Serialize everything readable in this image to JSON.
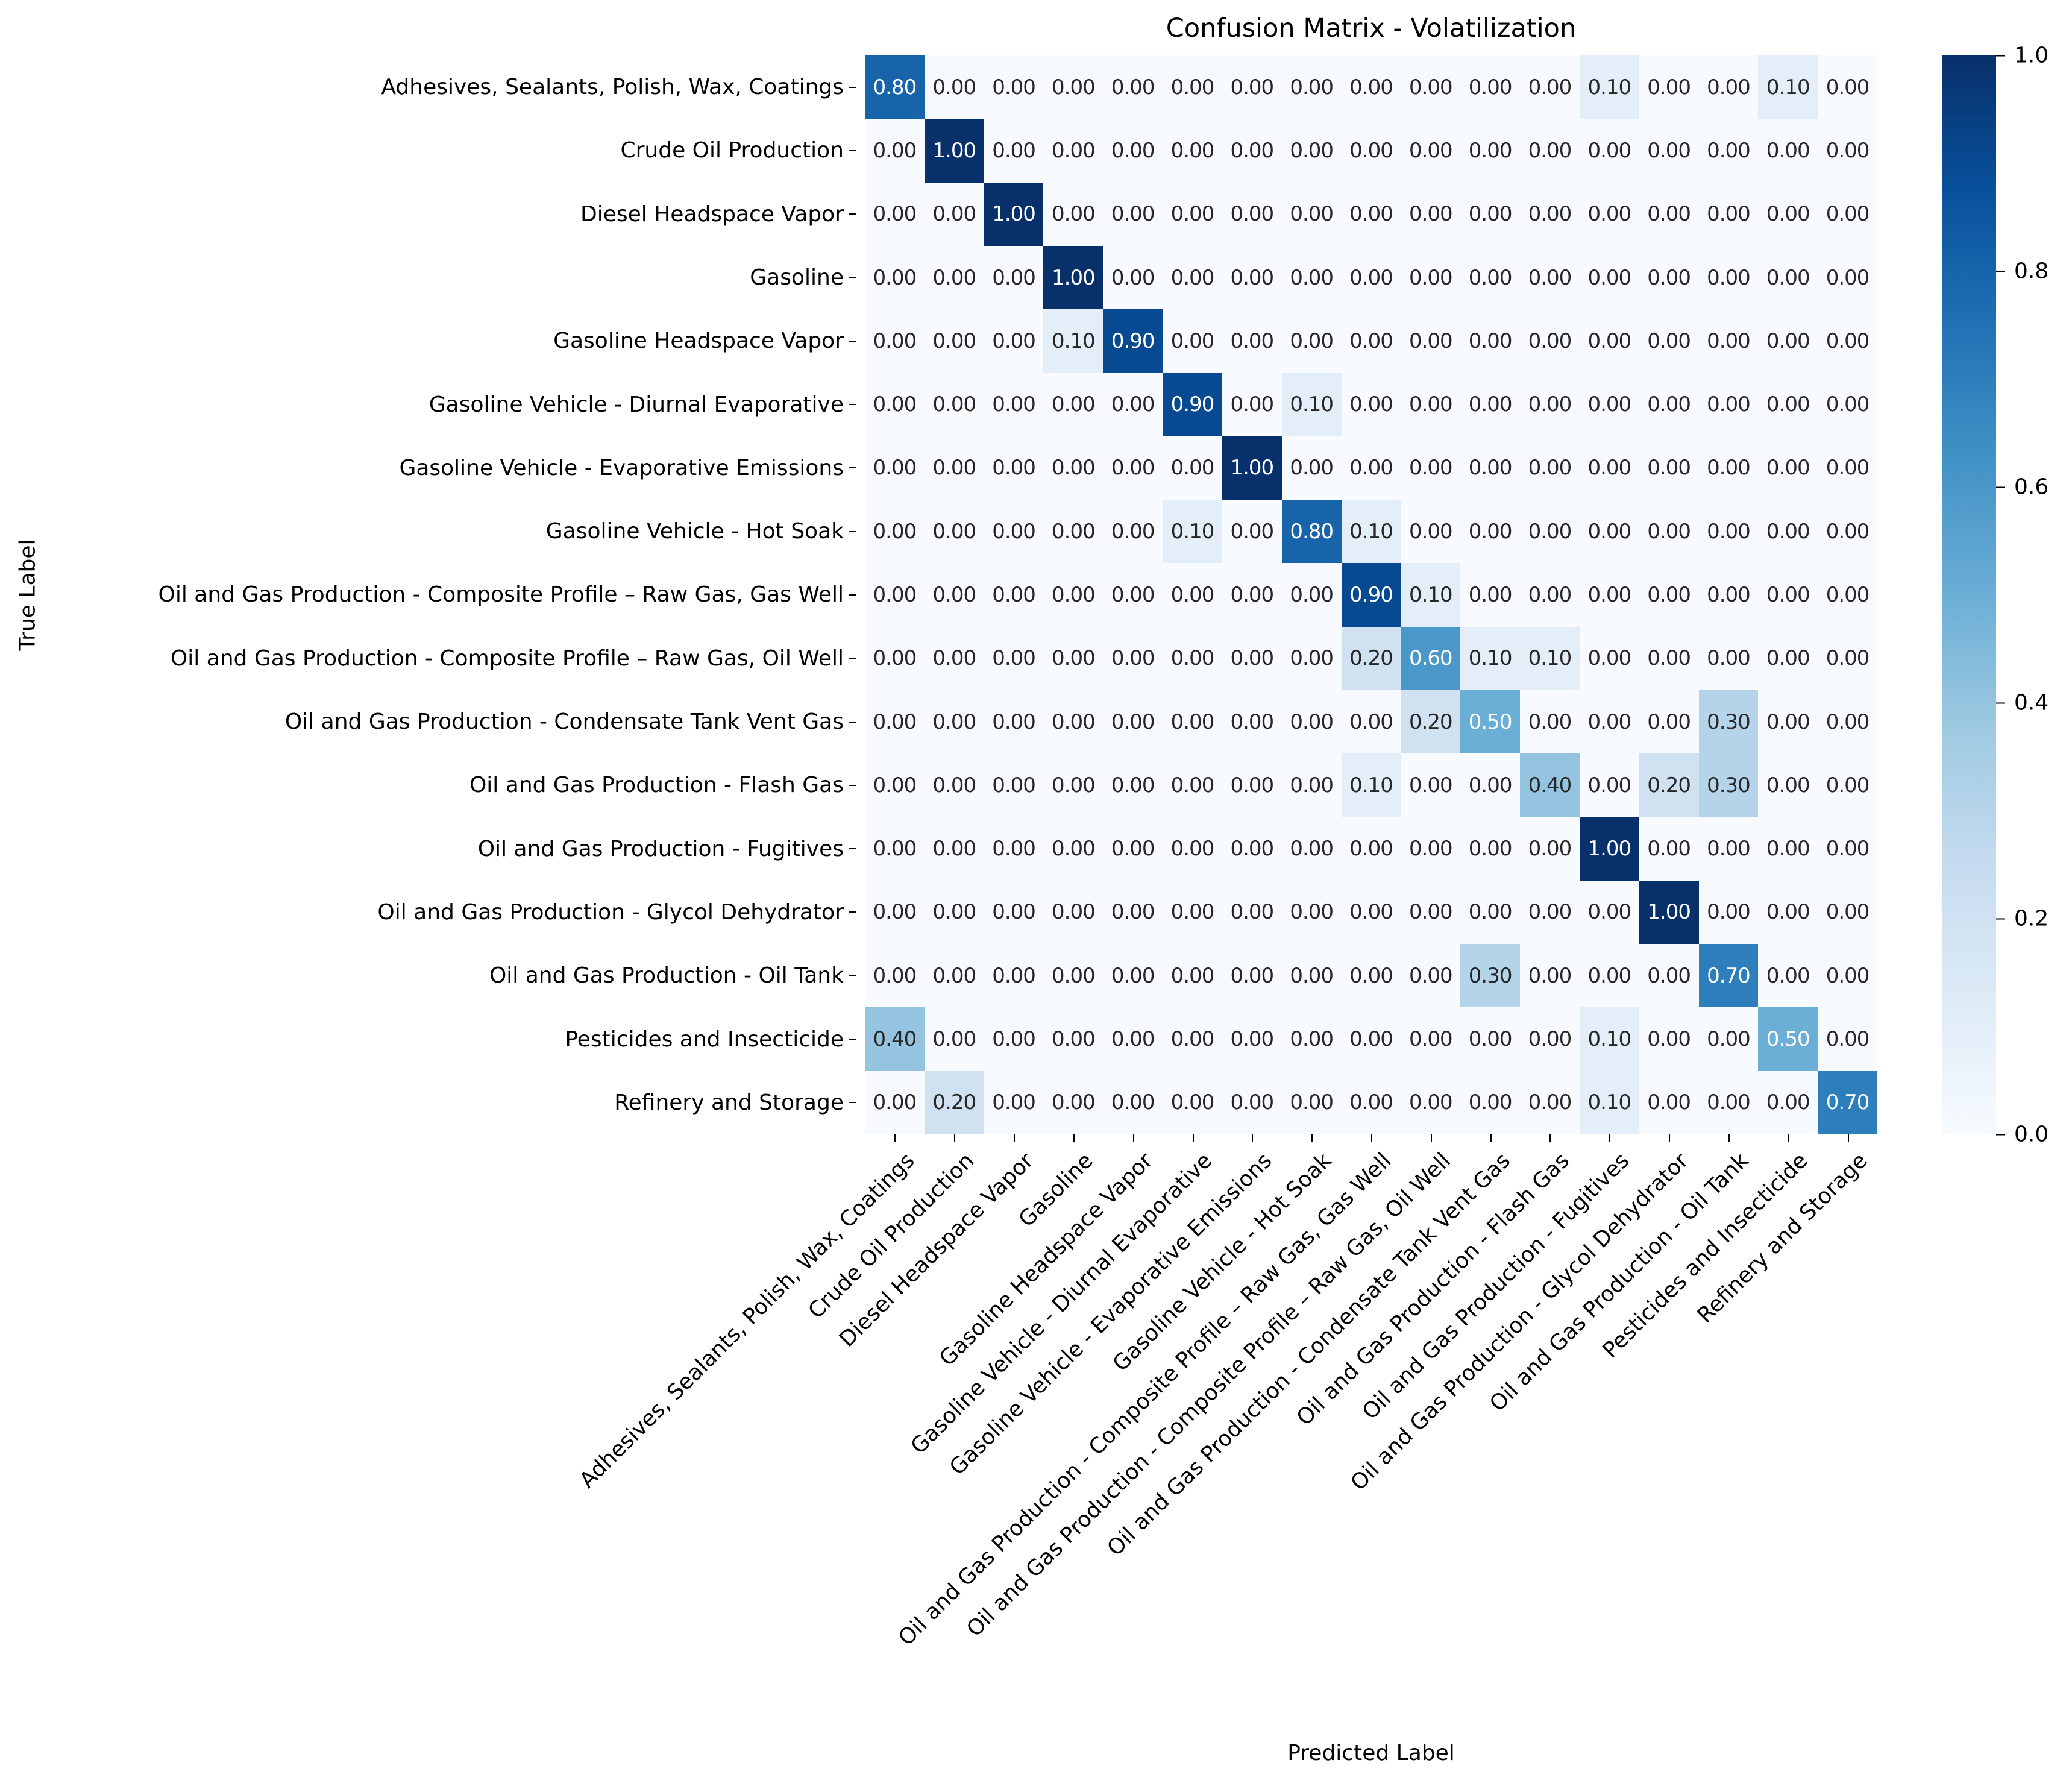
{
  "chart_data": {
    "type": "heatmap",
    "title": "Confusion Matrix - Volatilization",
    "xlabel": "Predicted Label",
    "ylabel": "True Label",
    "colormap": "Blues",
    "colorbar": {
      "min": 0.0,
      "max": 1.0,
      "ticks": [
        "0.0",
        "0.2",
        "0.4",
        "0.6",
        "0.8",
        "1.0"
      ]
    },
    "categories": [
      "Adhesives, Sealants, Polish, Wax, Coatings",
      "Crude Oil Production",
      "Diesel Headspace Vapor",
      "Gasoline",
      "Gasoline Headspace Vapor",
      "Gasoline Vehicle - Diurnal Evaporative",
      "Gasoline Vehicle - Evaporative Emissions",
      "Gasoline Vehicle - Hot Soak",
      "Oil and Gas Production - Composite Profile – Raw Gas, Gas Well",
      "Oil and Gas Production - Composite Profile – Raw Gas, Oil Well",
      "Oil and Gas Production - Condensate Tank Vent Gas",
      "Oil and Gas Production - Flash Gas",
      "Oil and Gas Production - Fugitives",
      "Oil and Gas Production - Glycol Dehydrator",
      "Oil and Gas Production - Oil Tank",
      "Pesticides and Insecticide",
      "Refinery and Storage"
    ],
    "matrix": [
      [
        0.8,
        0,
        0,
        0,
        0,
        0,
        0,
        0,
        0,
        0,
        0,
        0,
        0.1,
        0,
        0,
        0.1,
        0
      ],
      [
        0,
        1.0,
        0,
        0,
        0,
        0,
        0,
        0,
        0,
        0,
        0,
        0,
        0,
        0,
        0,
        0,
        0
      ],
      [
        0,
        0,
        1.0,
        0,
        0,
        0,
        0,
        0,
        0,
        0,
        0,
        0,
        0,
        0,
        0,
        0,
        0
      ],
      [
        0,
        0,
        0,
        1.0,
        0,
        0,
        0,
        0,
        0,
        0,
        0,
        0,
        0,
        0,
        0,
        0,
        0
      ],
      [
        0,
        0,
        0,
        0.1,
        0.9,
        0,
        0,
        0,
        0,
        0,
        0,
        0,
        0,
        0,
        0,
        0,
        0
      ],
      [
        0,
        0,
        0,
        0,
        0,
        0.9,
        0,
        0.1,
        0,
        0,
        0,
        0,
        0,
        0,
        0,
        0,
        0
      ],
      [
        0,
        0,
        0,
        0,
        0,
        0,
        1.0,
        0,
        0,
        0,
        0,
        0,
        0,
        0,
        0,
        0,
        0
      ],
      [
        0,
        0,
        0,
        0,
        0,
        0.1,
        0,
        0.8,
        0.1,
        0,
        0,
        0,
        0,
        0,
        0,
        0,
        0
      ],
      [
        0,
        0,
        0,
        0,
        0,
        0,
        0,
        0,
        0.9,
        0.1,
        0,
        0,
        0,
        0,
        0,
        0,
        0
      ],
      [
        0,
        0,
        0,
        0,
        0,
        0,
        0,
        0,
        0.2,
        0.6,
        0.1,
        0.1,
        0,
        0,
        0,
        0,
        0
      ],
      [
        0,
        0,
        0,
        0,
        0,
        0,
        0,
        0,
        0,
        0.2,
        0.5,
        0,
        0,
        0,
        0.3,
        0,
        0
      ],
      [
        0,
        0,
        0,
        0,
        0,
        0,
        0,
        0,
        0.1,
        0,
        0,
        0.4,
        0,
        0.2,
        0.3,
        0,
        0
      ],
      [
        0,
        0,
        0,
        0,
        0,
        0,
        0,
        0,
        0,
        0,
        0,
        0,
        1.0,
        0,
        0,
        0,
        0
      ],
      [
        0,
        0,
        0,
        0,
        0,
        0,
        0,
        0,
        0,
        0,
        0,
        0,
        0,
        1.0,
        0,
        0,
        0
      ],
      [
        0,
        0,
        0,
        0,
        0,
        0,
        0,
        0,
        0,
        0,
        0.3,
        0,
        0,
        0,
        0.7,
        0,
        0
      ],
      [
        0.4,
        0,
        0,
        0,
        0,
        0,
        0,
        0,
        0,
        0,
        0,
        0,
        0.1,
        0,
        0,
        0.5,
        0
      ],
      [
        0,
        0.2,
        0,
        0,
        0,
        0,
        0,
        0,
        0,
        0,
        0,
        0,
        0.1,
        0,
        0,
        0,
        0.7
      ]
    ],
    "value_format": "0.00"
  }
}
